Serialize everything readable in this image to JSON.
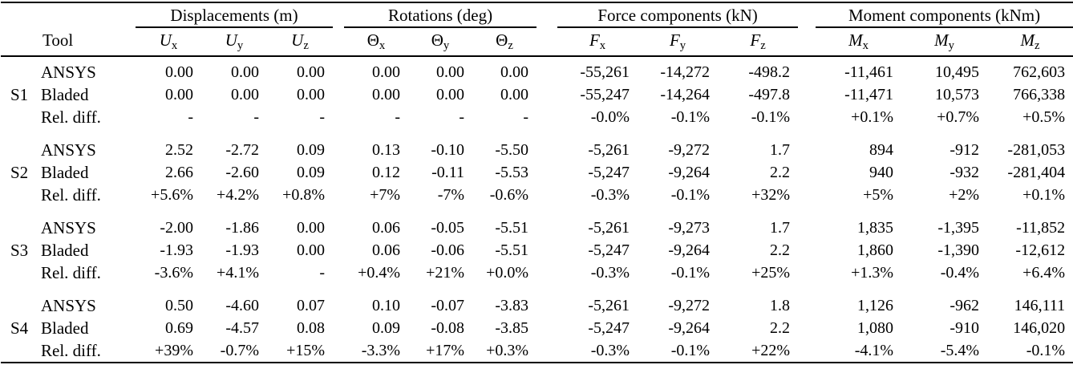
{
  "table": {
    "tool_header": "Tool",
    "groups": [
      {
        "label": "Displacements (m)",
        "columns": [
          {
            "base": "U",
            "sub": "x",
            "italic": true
          },
          {
            "base": "U",
            "sub": "y",
            "italic": true
          },
          {
            "base": "U",
            "sub": "z",
            "italic": true
          }
        ]
      },
      {
        "label": "Rotations (deg)",
        "columns": [
          {
            "base": "Θ",
            "sub": "x",
            "italic": false
          },
          {
            "base": "Θ",
            "sub": "y",
            "italic": false
          },
          {
            "base": "Θ",
            "sub": "z",
            "italic": false
          }
        ]
      },
      {
        "label": "Force components (kN)",
        "columns": [
          {
            "base": "F",
            "sub": "x",
            "italic": true
          },
          {
            "base": "F",
            "sub": "y",
            "italic": true
          },
          {
            "base": "F",
            "sub": "z",
            "italic": true
          }
        ]
      },
      {
        "label": "Moment components (kNm)",
        "columns": [
          {
            "base": "M",
            "sub": "x",
            "italic": true
          },
          {
            "base": "M",
            "sub": "y",
            "italic": true
          },
          {
            "base": "M",
            "sub": "z",
            "italic": true
          }
        ]
      }
    ],
    "sections": [
      {
        "id": "S1",
        "rows": [
          {
            "tool": "ANSYS",
            "values": [
              "0.00",
              "0.00",
              "0.00",
              "0.00",
              "0.00",
              "0.00",
              "-55,261",
              "-14,272",
              "-498.2",
              "-11,461",
              "10,495",
              "762,603"
            ]
          },
          {
            "tool": "Bladed",
            "values": [
              "0.00",
              "0.00",
              "0.00",
              "0.00",
              "0.00",
              "0.00",
              "-55,247",
              "-14,264",
              "-497.8",
              "-11,471",
              "10,573",
              "766,338"
            ]
          },
          {
            "tool": "Rel. diff.",
            "values": [
              "-",
              "-",
              "-",
              "-",
              "-",
              "-",
              "-0.0%",
              "-0.1%",
              "-0.1%",
              "+0.1%",
              "+0.7%",
              "+0.5%"
            ]
          }
        ]
      },
      {
        "id": "S2",
        "rows": [
          {
            "tool": "ANSYS",
            "values": [
              "2.52",
              "-2.72",
              "0.09",
              "0.13",
              "-0.10",
              "-5.50",
              "-5,261",
              "-9,272",
              "1.7",
              "894",
              "-912",
              "-281,053"
            ]
          },
          {
            "tool": "Bladed",
            "values": [
              "2.66",
              "-2.60",
              "0.09",
              "0.12",
              "-0.11",
              "-5.53",
              "-5,247",
              "-9,264",
              "2.2",
              "940",
              "-932",
              "-281,404"
            ]
          },
          {
            "tool": "Rel. diff.",
            "values": [
              "+5.6%",
              "+4.2%",
              "+0.8%",
              "+7%",
              "-7%",
              "-0.6%",
              "-0.3%",
              "-0.1%",
              "+32%",
              "+5%",
              "+2%",
              "+0.1%"
            ]
          }
        ]
      },
      {
        "id": "S3",
        "rows": [
          {
            "tool": "ANSYS",
            "values": [
              "-2.00",
              "-1.86",
              "0.00",
              "0.06",
              "-0.05",
              "-5.51",
              "-5,261",
              "-9,273",
              "1.7",
              "1,835",
              "-1,395",
              "-11,852"
            ]
          },
          {
            "tool": "Bladed",
            "values": [
              "-1.93",
              "-1.93",
              "0.00",
              "0.06",
              "-0.06",
              "-5.51",
              "-5,247",
              "-9,264",
              "2.2",
              "1,860",
              "-1,390",
              "-12,612"
            ]
          },
          {
            "tool": "Rel. diff.",
            "values": [
              "-3.6%",
              "+4.1%",
              "-",
              "+0.4%",
              "+21%",
              "+0.0%",
              "-0.3%",
              "-0.1%",
              "+25%",
              "+1.3%",
              "-0.4%",
              "+6.4%"
            ]
          }
        ]
      },
      {
        "id": "S4",
        "rows": [
          {
            "tool": "ANSYS",
            "values": [
              "0.50",
              "-4.60",
              "0.07",
              "0.10",
              "-0.07",
              "-3.83",
              "-5,261",
              "-9,272",
              "1.8",
              "1,126",
              "-962",
              "146,111"
            ]
          },
          {
            "tool": "Bladed",
            "values": [
              "0.69",
              "-4.57",
              "0.08",
              "0.09",
              "-0.08",
              "-3.85",
              "-5,247",
              "-9,264",
              "2.2",
              "1,080",
              "-910",
              "146,020"
            ]
          },
          {
            "tool": "Rel. diff.",
            "values": [
              "+39%",
              "-0.7%",
              "+15%",
              "-3.3%",
              "+17%",
              "+0.3%",
              "-0.3%",
              "-0.1%",
              "+22%",
              "-4.1%",
              "-5.4%",
              "-0.1%"
            ]
          }
        ]
      }
    ]
  }
}
